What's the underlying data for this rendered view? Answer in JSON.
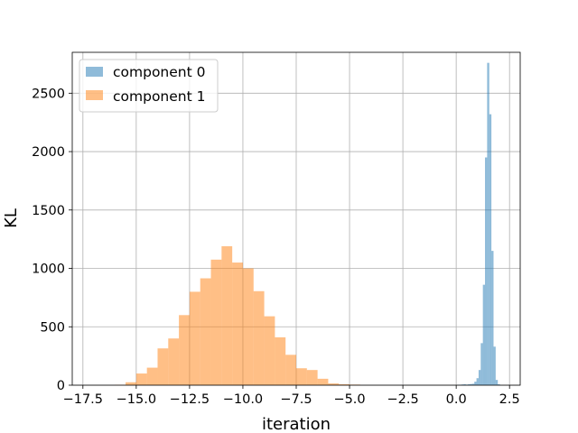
{
  "chart_data": {
    "type": "bar",
    "subtype": "histogram",
    "title": "",
    "xlabel": "iteration",
    "ylabel": "KL",
    "xlim": [
      -18.0,
      3.0
    ],
    "ylim": [
      0,
      2850
    ],
    "xticks": [
      -17.5,
      -15.0,
      -12.5,
      -10.0,
      -7.5,
      -5.0,
      -2.5,
      0.0,
      2.5
    ],
    "xtick_labels": [
      "−17.5",
      "−15.0",
      "−12.5",
      "−10.0",
      "−7.5",
      "−5.0",
      "−2.5",
      "0.0",
      "2.5"
    ],
    "yticks": [
      0,
      500,
      1000,
      1500,
      2000,
      2500
    ],
    "ytick_labels": [
      "0",
      "500",
      "1000",
      "1500",
      "2000",
      "2500"
    ],
    "grid": true,
    "legend_position": "top-left",
    "series": [
      {
        "name": "component 0",
        "color": "#1f77b4",
        "alpha": 0.5,
        "bins": [
          [
            0.05,
            0.15,
            3
          ],
          [
            0.15,
            0.25,
            4
          ],
          [
            0.25,
            0.35,
            6
          ],
          [
            0.35,
            0.45,
            8
          ],
          [
            0.45,
            0.55,
            5
          ],
          [
            0.55,
            0.65,
            8
          ],
          [
            0.65,
            0.75,
            10
          ],
          [
            0.75,
            0.85,
            12
          ],
          [
            0.85,
            0.95,
            30
          ],
          [
            0.95,
            1.05,
            60
          ],
          [
            1.05,
            1.15,
            130
          ],
          [
            1.15,
            1.25,
            360
          ],
          [
            1.25,
            1.35,
            860
          ],
          [
            1.35,
            1.45,
            1950
          ],
          [
            1.45,
            1.55,
            2760
          ],
          [
            1.55,
            1.65,
            2320
          ],
          [
            1.65,
            1.75,
            1150
          ],
          [
            1.75,
            1.85,
            330
          ],
          [
            1.85,
            1.95,
            45
          ],
          [
            1.95,
            2.05,
            8
          ]
        ]
      },
      {
        "name": "component 1",
        "color": "#ff7f0e",
        "alpha": 0.5,
        "bins": [
          [
            -16.0,
            -15.5,
            3
          ],
          [
            -15.5,
            -15.0,
            25
          ],
          [
            -15.0,
            -14.5,
            100
          ],
          [
            -14.5,
            -14.0,
            150
          ],
          [
            -14.0,
            -13.5,
            315
          ],
          [
            -13.5,
            -13.0,
            400
          ],
          [
            -13.0,
            -12.5,
            600
          ],
          [
            -12.5,
            -12.0,
            800
          ],
          [
            -12.0,
            -11.5,
            915
          ],
          [
            -11.5,
            -11.0,
            1075
          ],
          [
            -11.0,
            -10.5,
            1190
          ],
          [
            -10.5,
            -10.0,
            1050
          ],
          [
            -10.0,
            -9.5,
            1000
          ],
          [
            -9.5,
            -9.0,
            805
          ],
          [
            -9.0,
            -8.5,
            590
          ],
          [
            -8.5,
            -8.0,
            410
          ],
          [
            -8.0,
            -7.5,
            260
          ],
          [
            -7.5,
            -7.0,
            145
          ],
          [
            -7.0,
            -6.5,
            130
          ],
          [
            -6.5,
            -6.0,
            55
          ],
          [
            -6.0,
            -5.5,
            15
          ],
          [
            -5.5,
            -5.0,
            8
          ],
          [
            -5.0,
            -4.5,
            5
          ]
        ]
      }
    ]
  }
}
